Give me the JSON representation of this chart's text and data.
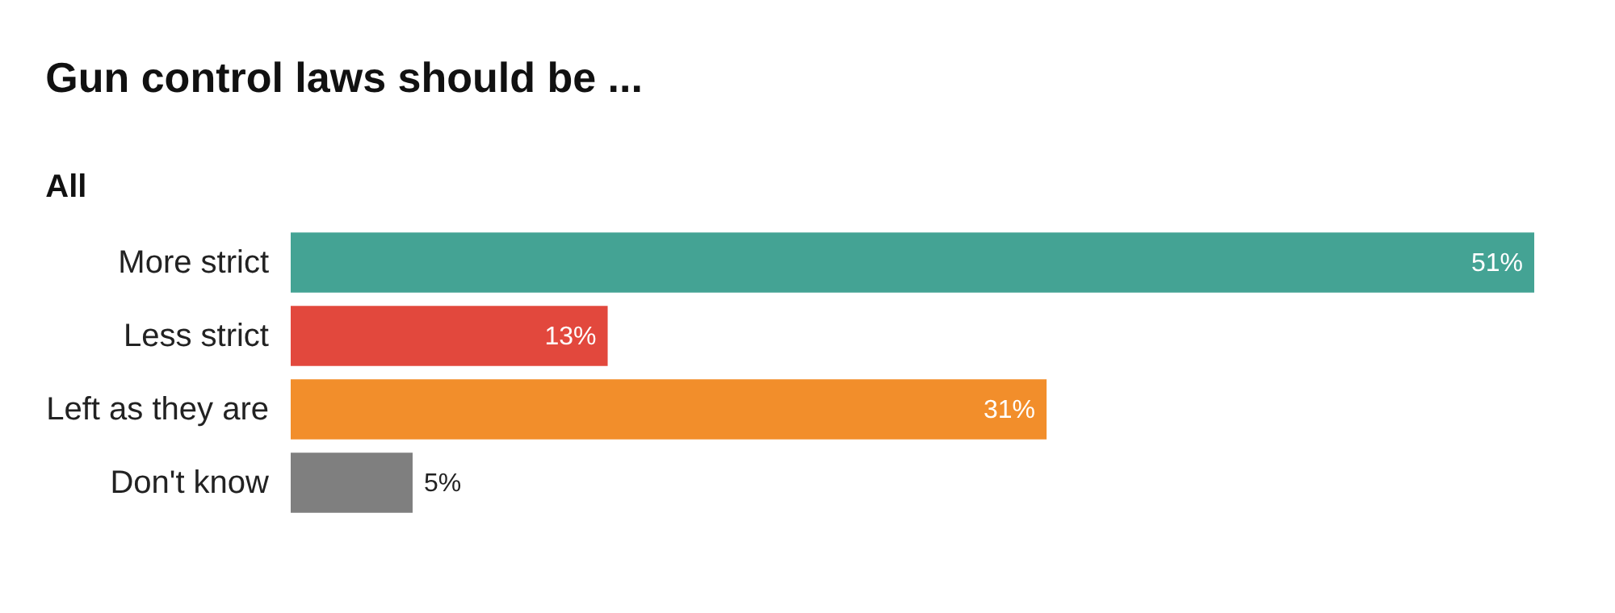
{
  "chart_data": {
    "type": "bar",
    "orientation": "horizontal",
    "title": "Gun control laws should be ...",
    "subtitle": "All",
    "categories": [
      "More strict",
      "Less strict",
      "Left as they are",
      "Don't know"
    ],
    "values": [
      51,
      13,
      31,
      5
    ],
    "colors": [
      "#44a394",
      "#e2483d",
      "#f28e2b",
      "#7f7f7f"
    ],
    "value_labels": [
      "51%",
      "13%",
      "31%",
      "5%"
    ]
  }
}
